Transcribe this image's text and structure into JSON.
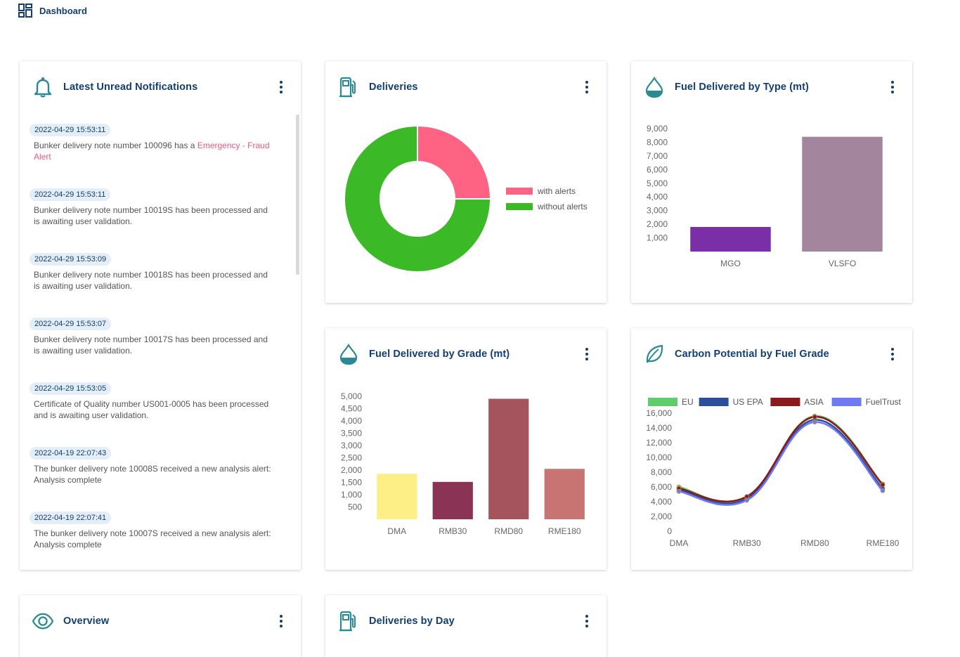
{
  "topbar": {
    "title": "Dashboard"
  },
  "notifications": {
    "title": "Latest Unread Notifications",
    "items": [
      {
        "timestamp": "2022-04-29 15:53:11",
        "message": "Bunker delivery note number 100096 has a ",
        "alert": "Emergency - Fraud Alert"
      },
      {
        "timestamp": "2022-04-29 15:53:11",
        "message": "Bunker delivery note number 10019S has been processed and is awaiting user validation.",
        "alert": ""
      },
      {
        "timestamp": "2022-04-29 15:53:09",
        "message": "Bunker delivery note number 10018S has been processed and is awaiting user validation.",
        "alert": ""
      },
      {
        "timestamp": "2022-04-29 15:53:07",
        "message": "Bunker delivery note number 10017S has been processed and is awaiting user validation.",
        "alert": ""
      },
      {
        "timestamp": "2022-04-29 15:53:05",
        "message": "Certificate of Quality number US001-0005 has been processed and is awaiting user validation.",
        "alert": ""
      },
      {
        "timestamp": "2022-04-19 22:07:43",
        "message": "The bunker delivery note 10008S received a new analysis alert: Analysis complete",
        "alert": ""
      },
      {
        "timestamp": "2022-04-19 22:07:41",
        "message": "The bunker delivery note 10007S received a new analysis alert: Analysis complete",
        "alert": ""
      }
    ]
  },
  "deliveries": {
    "title": "Deliveries",
    "chart_data": {
      "type": "pie",
      "variant": "doughnut",
      "labels": [
        "with alerts",
        "without alerts"
      ],
      "values": [
        25,
        75
      ],
      "colors": [
        "#ff6384",
        "#3cb926"
      ],
      "legend_position": "right"
    }
  },
  "fuel_by_type": {
    "title": "Fuel Delivered by Type (mt)",
    "chart_data": {
      "type": "bar",
      "categories": [
        "MGO",
        "VLSFO"
      ],
      "values": [
        1800,
        8400
      ],
      "colors": [
        "#7b2fa6",
        "#a3869e"
      ],
      "ylim": [
        0,
        9000
      ],
      "yticks": [
        "9,000",
        "8,000",
        "7,000",
        "6,000",
        "5,000",
        "4,000",
        "3,000",
        "2,000",
        "1,000"
      ],
      "ytick_values": [
        9000,
        8000,
        7000,
        6000,
        5000,
        4000,
        3000,
        2000,
        1000
      ]
    }
  },
  "fuel_by_grade": {
    "title": "Fuel Delivered by Grade (mt)",
    "chart_data": {
      "type": "bar",
      "categories": [
        "DMA",
        "RMB30",
        "RMD80",
        "RME180"
      ],
      "values": [
        1850,
        1520,
        4900,
        2050
      ],
      "colors": [
        "#fdee86",
        "#8a3354",
        "#a5545e",
        "#c87473"
      ],
      "ylim": [
        0,
        5000
      ],
      "yticks": [
        "5,000",
        "4,500",
        "4,000",
        "3,500",
        "3,000",
        "2,500",
        "2,000",
        "1,500",
        "1,000",
        "500"
      ],
      "ytick_values": [
        5000,
        4500,
        4000,
        3500,
        3000,
        2500,
        2000,
        1500,
        1000,
        500
      ]
    }
  },
  "carbon": {
    "title": "Carbon Potential by Fuel Grade",
    "chart_data": {
      "type": "line",
      "categories": [
        "DMA",
        "RMB30",
        "RMD80",
        "RME180"
      ],
      "series": [
        {
          "name": "EU",
          "color": "#5fcd6a",
          "values": [
            6000,
            4600,
            15600,
            6400
          ]
        },
        {
          "name": "US EPA",
          "color": "#2c4f99",
          "values": [
            5600,
            4400,
            15100,
            5800
          ]
        },
        {
          "name": "ASIA",
          "color": "#8b1a1e",
          "values": [
            5800,
            4700,
            15500,
            6300
          ]
        },
        {
          "name": "FuelTrust",
          "color": "#6e79f2",
          "values": [
            5400,
            4200,
            14800,
            5500
          ]
        }
      ],
      "ylim": [
        0,
        16000
      ],
      "yticks": [
        "16,000",
        "14,000",
        "12,000",
        "10,000",
        "8,000",
        "6,000",
        "4,000",
        "2,000",
        "0"
      ],
      "ytick_values": [
        16000,
        14000,
        12000,
        10000,
        8000,
        6000,
        4000,
        2000,
        0
      ]
    }
  },
  "overview": {
    "title": "Overview"
  },
  "deliveries_by_day": {
    "title": "Deliveries by Day"
  }
}
